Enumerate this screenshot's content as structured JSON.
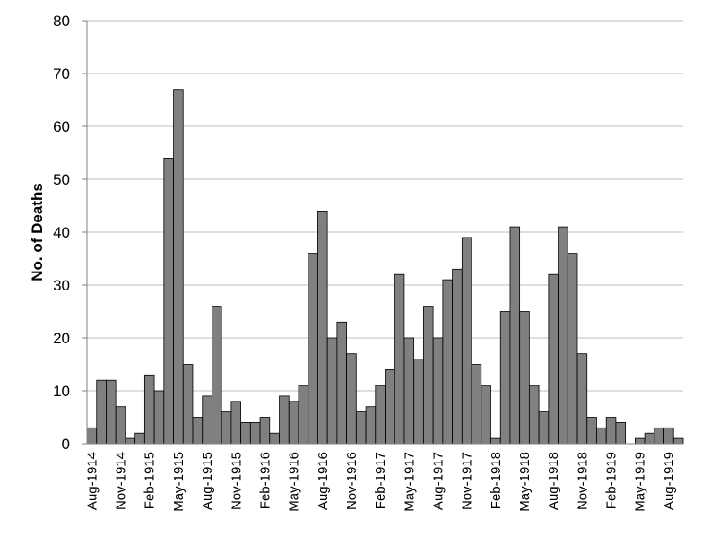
{
  "chart_data": {
    "type": "bar",
    "ylabel": "No. of Deaths",
    "xlabel": "",
    "ylim": [
      0,
      80
    ],
    "yticks": [
      0,
      10,
      20,
      30,
      40,
      50,
      60,
      70,
      80
    ],
    "grid": true,
    "colors": {
      "bar_fill": "#808080",
      "bar_edge": "#000000",
      "grid": "#bfbfbf"
    },
    "categories": [
      "Aug-1914",
      "Sep-1914",
      "Oct-1914",
      "Nov-1914",
      "Dec-1914",
      "Jan-1915",
      "Feb-1915",
      "Mar-1915",
      "Apr-1915",
      "May-1915",
      "Jun-1915",
      "Jul-1915",
      "Aug-1915",
      "Sep-1915",
      "Oct-1915",
      "Nov-1915",
      "Dec-1915",
      "Jan-1916",
      "Feb-1916",
      "Mar-1916",
      "Apr-1916",
      "May-1916",
      "Jun-1916",
      "Jul-1916",
      "Aug-1916",
      "Sep-1916",
      "Oct-1916",
      "Nov-1916",
      "Dec-1916",
      "Jan-1917",
      "Feb-1917",
      "Mar-1917",
      "Apr-1917",
      "May-1917",
      "Jun-1917",
      "Jul-1917",
      "Aug-1917",
      "Sep-1917",
      "Oct-1917",
      "Nov-1917",
      "Dec-1917",
      "Jan-1918",
      "Feb-1918",
      "Mar-1918",
      "Apr-1918",
      "May-1918",
      "Jun-1918",
      "Jul-1918",
      "Aug-1918",
      "Sep-1918",
      "Oct-1918",
      "Nov-1918",
      "Dec-1918",
      "Jan-1919",
      "Feb-1919",
      "Mar-1919",
      "Apr-1919",
      "May-1919",
      "Jun-1919",
      "Jul-1919",
      "Aug-1919",
      "Sep-1919"
    ],
    "tick_labels_shown": [
      "Aug-1914",
      "Nov-1914",
      "Feb-1915",
      "May-1915",
      "Aug-1915",
      "Nov-1915",
      "Feb-1916",
      "May-1916",
      "Aug-1916",
      "Nov-1916",
      "Feb-1917",
      "May-1917",
      "Aug-1917",
      "Nov-1917",
      "Feb-1918",
      "May-1918",
      "Aug-1918",
      "Nov-1918",
      "Feb-1919",
      "May-1919",
      "Aug-1919"
    ],
    "values": [
      3,
      12,
      12,
      7,
      1,
      2,
      13,
      10,
      54,
      67,
      15,
      5,
      9,
      26,
      6,
      8,
      4,
      4,
      5,
      2,
      9,
      8,
      11,
      36,
      44,
      20,
      23,
      17,
      6,
      7,
      11,
      14,
      32,
      20,
      16,
      26,
      20,
      31,
      33,
      39,
      15,
      11,
      1,
      25,
      41,
      25,
      11,
      6,
      32,
      41,
      36,
      17,
      5,
      3,
      5,
      4,
      0,
      1,
      2,
      3,
      3,
      1
    ]
  }
}
